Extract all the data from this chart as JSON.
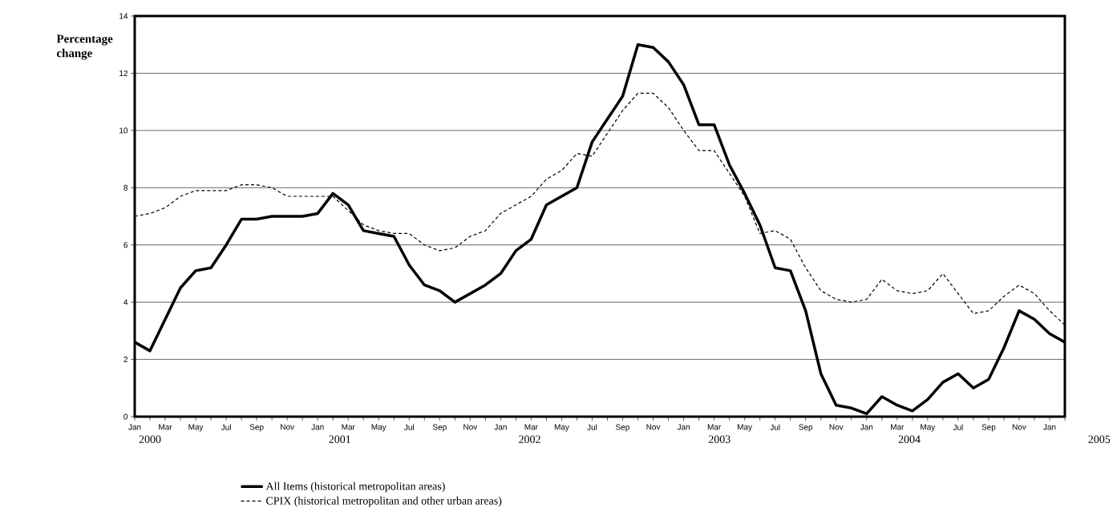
{
  "chart_data": {
    "type": "line",
    "ylabel": "Percentage change",
    "categories": [
      "Jan",
      null,
      "Mar",
      null,
      "May",
      null,
      "Jul",
      null,
      "Sep",
      null,
      "Nov",
      null,
      "Jan",
      null,
      "Mar",
      null,
      "May",
      null,
      "Jul",
      null,
      "Sep",
      null,
      "Nov",
      null,
      "Jan",
      null,
      "Mar",
      null,
      "May",
      null,
      "Jul",
      null,
      "Sep",
      null,
      "Nov",
      null,
      "Jan",
      null,
      "Mar",
      null,
      "May",
      null,
      "Jul",
      null,
      "Sep",
      null,
      "Nov",
      null,
      "Jan",
      null,
      "Mar",
      null,
      "May",
      null,
      "Jul",
      null,
      "Sep",
      null,
      "Nov",
      null,
      "Jan",
      null
    ],
    "series": [
      {
        "name": "All Items (historical metropolitan areas)",
        "color": "#000000",
        "line_style": "solid",
        "values": [
          2.6,
          2.3,
          3.4,
          4.5,
          5.1,
          5.2,
          6.0,
          6.9,
          6.9,
          7.0,
          7.0,
          7.0,
          7.1,
          7.8,
          7.4,
          6.5,
          6.4,
          6.3,
          5.3,
          4.6,
          4.4,
          4.0,
          4.3,
          4.6,
          5.0,
          5.8,
          6.2,
          7.4,
          7.7,
          8.0,
          9.6,
          10.4,
          11.2,
          13.0,
          12.9,
          12.4,
          11.6,
          10.2,
          10.2,
          8.8,
          7.8,
          6.7,
          5.2,
          5.1,
          3.7,
          1.5,
          0.4,
          0.3,
          0.1,
          0.7,
          0.4,
          0.2,
          0.6,
          1.2,
          1.5,
          1.0,
          1.3,
          2.4,
          3.7,
          3.4,
          2.9,
          2.6
        ]
      },
      {
        "name": "CPIX (historical metropolitan and other urban areas)",
        "color": "#000000",
        "line_style": "dashed",
        "values": [
          7.0,
          7.1,
          7.3,
          7.7,
          7.9,
          7.9,
          7.9,
          8.1,
          8.1,
          8.0,
          7.7,
          7.7,
          7.7,
          7.7,
          7.2,
          6.7,
          6.5,
          6.4,
          6.4,
          6.0,
          5.8,
          5.9,
          6.3,
          6.5,
          7.1,
          7.4,
          7.7,
          8.3,
          8.6,
          9.2,
          9.1,
          9.9,
          10.7,
          11.3,
          11.3,
          10.8,
          10.0,
          9.3,
          9.3,
          8.5,
          7.7,
          6.4,
          6.5,
          6.2,
          5.2,
          4.4,
          4.1,
          4.0,
          4.1,
          4.8,
          4.4,
          4.3,
          4.4,
          5.0,
          4.3,
          3.6,
          3.7,
          4.2,
          4.6,
          4.3,
          3.7,
          3.2
        ]
      }
    ],
    "annotations": [
      "2000",
      "2001",
      "2002",
      "2003",
      "2004",
      "2005"
    ],
    "ylim": [
      0,
      14
    ],
    "yticks": [
      0,
      2,
      4,
      6,
      8,
      10,
      12,
      14
    ],
    "grid": "y",
    "legend": "bottom",
    "marker": "none"
  }
}
